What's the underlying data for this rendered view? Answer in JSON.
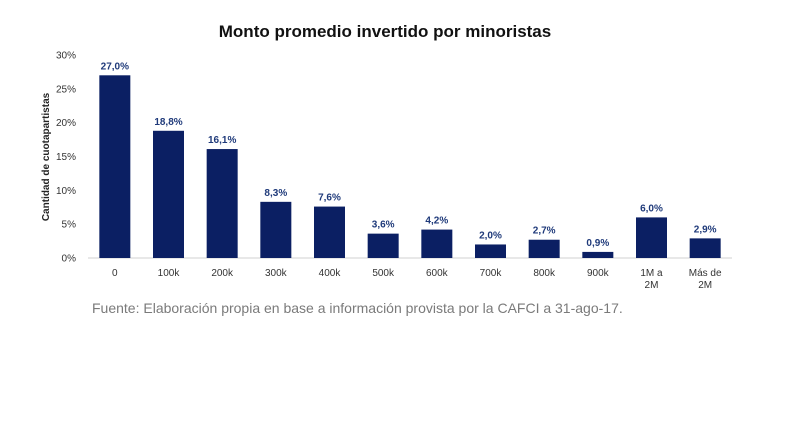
{
  "chart_data": {
    "type": "bar",
    "title": "Monto promedio invertido por minoristas",
    "ylabel": "Cantidad de cuotapartistas",
    "xlabel": "",
    "categories": [
      "0",
      "100k",
      "200k",
      "300k",
      "400k",
      "500k",
      "600k",
      "700k",
      "800k",
      "900k",
      "1M a 2M",
      "Más de 2M"
    ],
    "values": [
      27.0,
      18.8,
      16.1,
      8.3,
      7.6,
      3.6,
      4.2,
      2.0,
      2.7,
      0.9,
      6.0,
      2.9
    ],
    "data_labels": [
      "27,0%",
      "18,8%",
      "16,1%",
      "8,3%",
      "7,6%",
      "3,6%",
      "4,2%",
      "2,0%",
      "2,7%",
      "0,9%",
      "6,0%",
      "2,9%"
    ],
    "ylim": [
      0,
      30
    ],
    "yticks": [
      0,
      5,
      10,
      15,
      20,
      25,
      30
    ],
    "ytick_labels": [
      "0%",
      "5%",
      "10%",
      "15%",
      "20%",
      "25%",
      "30%"
    ],
    "grid": false,
    "legend": "none",
    "bar_color": "#0b1f63",
    "label_color": "#1f3a7a"
  },
  "source_note": "Fuente: Elaboración propia en base a información provista por la CAFCI a 31-ago-17."
}
